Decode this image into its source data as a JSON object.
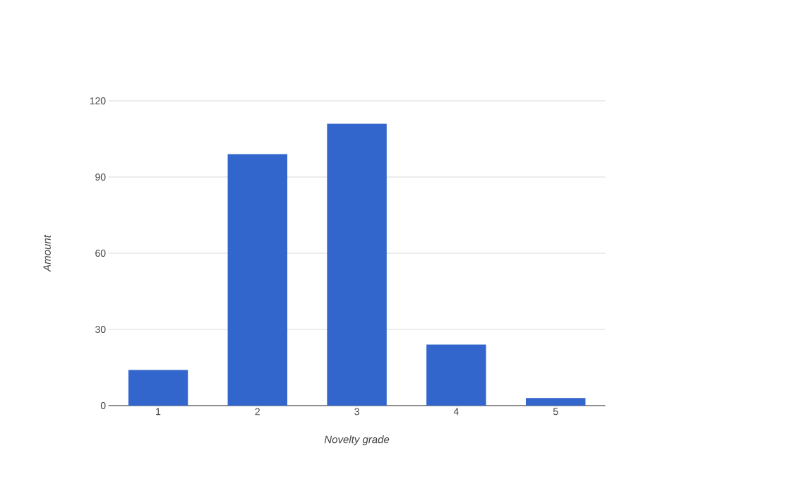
{
  "chart_data": {
    "type": "bar",
    "xlabel": "Novelty grade",
    "ylabel": "Amount",
    "categories": [
      "1",
      "2",
      "3",
      "4",
      "5"
    ],
    "values": [
      14,
      99,
      111,
      24,
      3
    ],
    "color": "#3366cc",
    "ylim": [
      0,
      120
    ],
    "yticks": [
      0,
      30,
      60,
      90,
      120
    ],
    "grid": "y"
  }
}
